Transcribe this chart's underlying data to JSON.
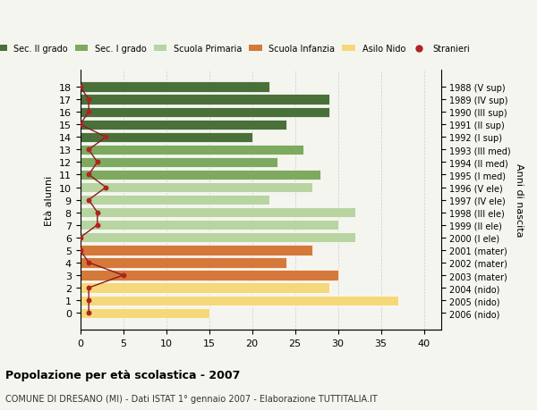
{
  "ages": [
    18,
    17,
    16,
    15,
    14,
    13,
    12,
    11,
    10,
    9,
    8,
    7,
    6,
    5,
    4,
    3,
    2,
    1,
    0
  ],
  "bar_values": [
    22,
    29,
    29,
    24,
    20,
    26,
    23,
    28,
    27,
    22,
    32,
    30,
    32,
    27,
    24,
    30,
    29,
    37,
    15
  ],
  "bar_colors": [
    "#4a7039",
    "#4a7039",
    "#4a7039",
    "#4a7039",
    "#4a7039",
    "#7daa5f",
    "#7daa5f",
    "#7daa5f",
    "#b8d4a0",
    "#b8d4a0",
    "#b8d4a0",
    "#b8d4a0",
    "#b8d4a0",
    "#d4793a",
    "#d4793a",
    "#d4793a",
    "#f5d87a",
    "#f5d87a",
    "#f5d87a"
  ],
  "stranieri_values": [
    0,
    1,
    1,
    0,
    3,
    1,
    2,
    1,
    3,
    1,
    2,
    2,
    0,
    0,
    1,
    5,
    1,
    1,
    1
  ],
  "right_labels": [
    "1988 (V sup)",
    "1989 (IV sup)",
    "1990 (III sup)",
    "1991 (II sup)",
    "1992 (I sup)",
    "1993 (III med)",
    "1994 (II med)",
    "1995 (I med)",
    "1996 (V ele)",
    "1997 (IV ele)",
    "1998 (III ele)",
    "1999 (II ele)",
    "2000 (I ele)",
    "2001 (mater)",
    "2002 (mater)",
    "2003 (mater)",
    "2004 (nido)",
    "2005 (nido)",
    "2006 (nido)"
  ],
  "xlabel": "",
  "ylabel": "Età alunni",
  "right_ylabel": "Anni di nascita",
  "title": "Popolazione per età scolastica - 2007",
  "subtitle": "COMUNE DI DRESANO (MI) - Dati ISTAT 1° gennaio 2007 - Elaborazione TUTTITALIA.IT",
  "xlim": [
    0,
    42
  ],
  "xticks": [
    0,
    5,
    10,
    15,
    20,
    25,
    30,
    35,
    40
  ],
  "legend_labels": [
    "Sec. II grado",
    "Sec. I grado",
    "Scuola Primaria",
    "Scuola Infanzia",
    "Asilo Nido",
    "Stranieri"
  ],
  "legend_colors": [
    "#4a7039",
    "#7daa5f",
    "#b8d4a0",
    "#d4793a",
    "#f5d87a",
    "#b22222"
  ],
  "background_color": "#f5f5f0",
  "grid_color": "#cccccc"
}
